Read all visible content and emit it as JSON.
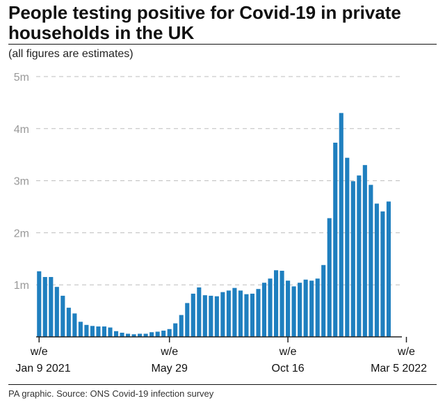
{
  "title": "People testing positive for Covid-19 in private households in the UK",
  "subtitle": "(all figures are estimates)",
  "source": "PA graphic. Source: ONS Covid-19 infection survey",
  "colors": {
    "bar": "#1f7fbf",
    "grid": "#bdbdbd",
    "axis": "#222222",
    "tick_label": "#999999"
  },
  "chart_data": {
    "type": "bar",
    "y_ticks": [
      {
        "value": 1,
        "label": "1m"
      },
      {
        "value": 2,
        "label": "2m"
      },
      {
        "value": 3,
        "label": "3m"
      },
      {
        "value": 4,
        "label": "4m"
      },
      {
        "value": 5,
        "label": "5m"
      }
    ],
    "ylim": [
      0,
      5
    ],
    "grid": true,
    "x_ticks": [
      {
        "index": 0,
        "line1": "w/e",
        "line2": "Jan 9 2021"
      },
      {
        "index": 22,
        "line1": "w/e",
        "line2": "May 29"
      },
      {
        "index": 42,
        "line1": "w/e",
        "line2": "Oct 16"
      },
      {
        "index": 62,
        "line1": "w/e",
        "line2": "Mar 5 2022"
      }
    ],
    "values": [
      1.26,
      1.15,
      1.15,
      0.96,
      0.79,
      0.56,
      0.45,
      0.29,
      0.23,
      0.21,
      0.2,
      0.2,
      0.18,
      0.11,
      0.08,
      0.06,
      0.05,
      0.06,
      0.06,
      0.09,
      0.1,
      0.12,
      0.15,
      0.26,
      0.42,
      0.65,
      0.83,
      0.95,
      0.8,
      0.79,
      0.78,
      0.86,
      0.89,
      0.94,
      0.89,
      0.82,
      0.83,
      0.92,
      1.04,
      1.12,
      1.28,
      1.27,
      1.08,
      0.97,
      1.04,
      1.1,
      1.08,
      1.12,
      1.38,
      2.28,
      3.73,
      4.3,
      3.44,
      2.99,
      3.1,
      3.3,
      2.92,
      2.56,
      2.41,
      2.6
    ]
  }
}
